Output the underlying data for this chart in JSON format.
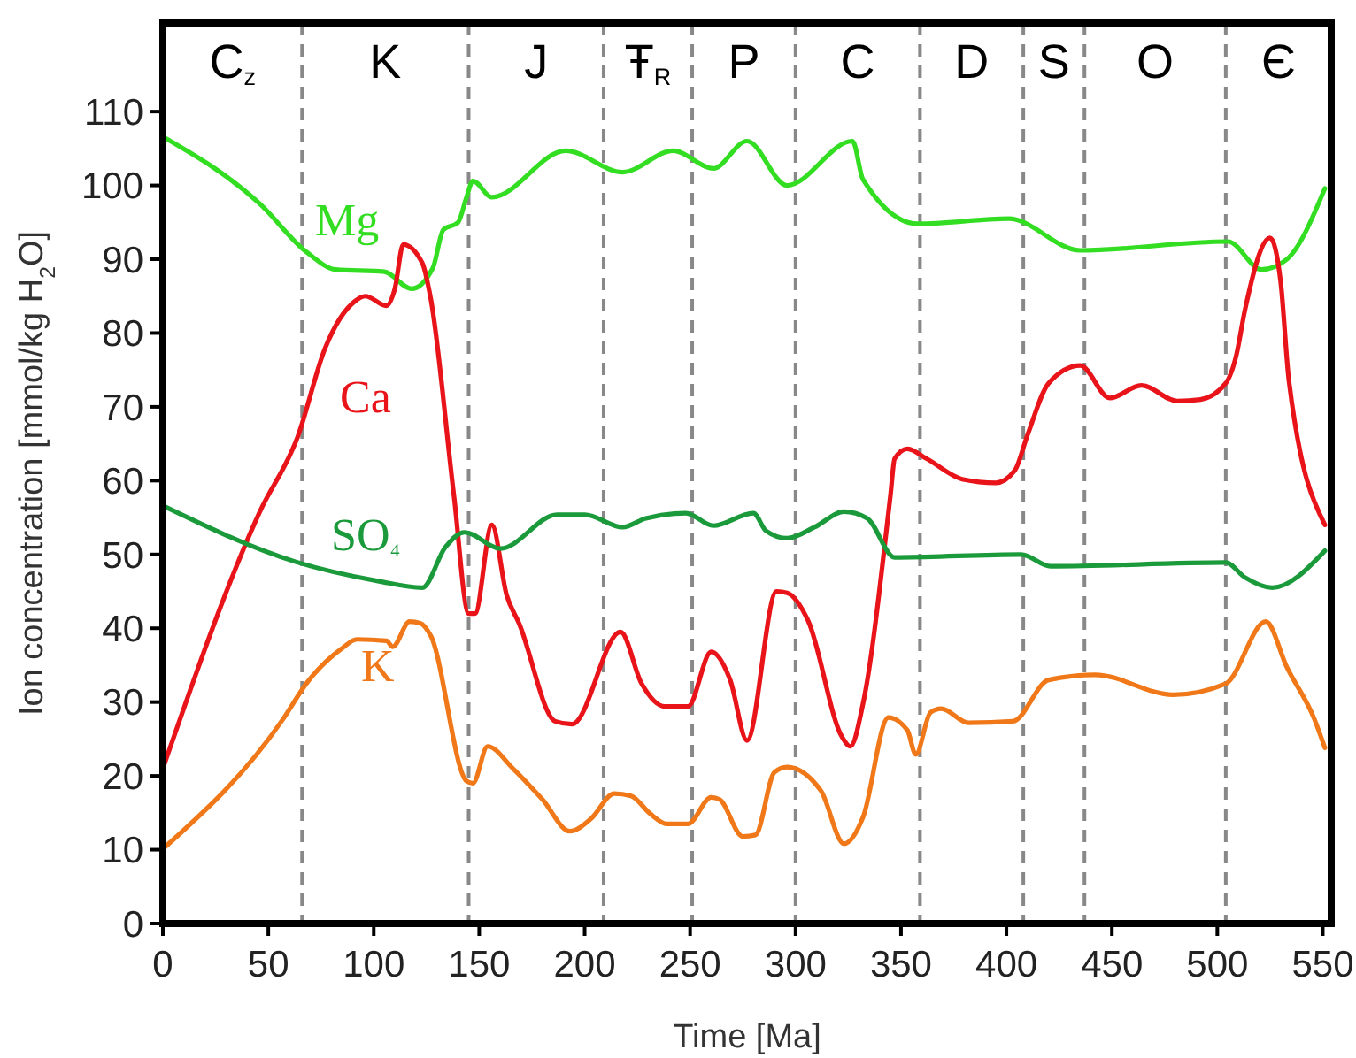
{
  "chart_data": {
    "type": "line",
    "xlabel": "Time [Ma]",
    "ylabel": "Ion concentration [mmol/kg H$_{2}$O]",
    "xlim": [
      0,
      554
    ],
    "xticks": [
      0,
      50,
      100,
      150,
      200,
      250,
      300,
      350,
      400,
      450,
      500,
      550
    ],
    "ylim": [
      0,
      122
    ],
    "yticks": [
      0,
      10,
      20,
      30,
      40,
      50,
      60,
      70,
      80,
      90,
      100,
      110
    ],
    "grid": false,
    "legend": false,
    "marker": "none",
    "line_style": "solid",
    "series": [
      {
        "name": "Mg",
        "color": "#33dd22",
        "x": [
          0,
          46,
          68,
          82,
          105,
          118,
          128,
          133,
          140,
          144,
          147,
          156,
          191,
          218,
          242,
          261,
          277,
          296,
          327,
          332,
          358,
          401,
          435,
          505,
          521,
          533,
          551
        ],
        "values": [
          106.6,
          97.5,
          91,
          88.6,
          88.3,
          86,
          88.8,
          94,
          95,
          98.4,
          100.6,
          98.4,
          104.7,
          101.8,
          104.7,
          102.3,
          106,
          100,
          106,
          100.8,
          94.8,
          95.5,
          91.2,
          92.4,
          88.6,
          90,
          99.6
        ]
      },
      {
        "name": "Ca",
        "color": "#e8141a",
        "x": [
          0,
          46,
          64,
          77,
          91,
          96,
          106,
          110,
          114,
          123,
          127,
          138,
          145,
          148,
          156,
          163,
          169,
          186,
          194,
          217,
          227,
          238,
          249,
          260,
          269,
          277,
          291,
          296,
          306,
          322,
          326,
          332,
          345,
          347,
          353,
          362,
          379,
          395,
          404,
          410,
          420,
          435,
          449,
          464,
          481,
          492,
          504,
          509,
          513,
          525,
          530,
          534,
          551
        ],
        "values": [
          21,
          55.8,
          66,
          78,
          84.3,
          85,
          83.7,
          86,
          92,
          89.5,
          84.7,
          58,
          42,
          42,
          54,
          44.5,
          40.6,
          27.4,
          27,
          39.5,
          32.5,
          29.4,
          29.4,
          36.8,
          33,
          24.8,
          45,
          44.8,
          41,
          25.3,
          24,
          29.8,
          58,
          63,
          64.3,
          63,
          60.2,
          59.7,
          61.4,
          66.2,
          73.2,
          75.6,
          71.2,
          72.9,
          70.8,
          71,
          73.2,
          77,
          83,
          92.9,
          87,
          73.4,
          54
        ]
      },
      {
        "name": "SO₄",
        "color": "#1a9a3a",
        "x": [
          0,
          63,
          102,
          123,
          134,
          143,
          160,
          187,
          200,
          218,
          229,
          248,
          261,
          280,
          286,
          296,
          309,
          323,
          334,
          347,
          407,
          421,
          504,
          513,
          526,
          551
        ],
        "values": [
          56.6,
          49,
          46.4,
          45.5,
          51,
          53,
          50.8,
          55.4,
          55.4,
          53.7,
          54.9,
          55.6,
          53.9,
          55.6,
          53.2,
          52.2,
          53.7,
          55.8,
          54.9,
          49.6,
          50,
          48.4,
          48.9,
          46.9,
          45.5,
          50.5
        ]
      },
      {
        "name": "K",
        "color": "#f07818",
        "x": [
          0,
          57,
          68,
          85,
          92,
          106,
          109,
          117,
          122,
          127,
          144,
          147,
          154,
          166,
          180,
          193,
          203,
          214,
          222,
          231,
          239,
          249,
          260,
          264,
          275,
          281,
          290,
          296,
          312,
          323,
          332,
          344,
          353,
          357,
          364,
          369,
          382,
          403,
          420,
          442,
          479,
          504,
          523,
          533,
          546,
          551
        ],
        "values": [
          10.1,
          27.7,
          32.5,
          37.3,
          38.5,
          38.3,
          37.5,
          40.9,
          40.7,
          39,
          19.3,
          19,
          24,
          21,
          16.8,
          12.5,
          14.2,
          17.6,
          17.3,
          14.9,
          13.5,
          13.5,
          17.1,
          16.8,
          11.8,
          12,
          20.5,
          21.2,
          18,
          10.8,
          14.4,
          27.9,
          26.2,
          22.9,
          28.6,
          29.1,
          27.2,
          27.4,
          33,
          33.7,
          31,
          32.5,
          40.9,
          34.7,
          27.7,
          23.8
        ]
      }
    ],
    "ref_lines": [
      {
        "axis": "x",
        "value": 66,
        "color": "#888888",
        "line_style": "dashed"
      },
      {
        "axis": "x",
        "value": 145,
        "color": "#888888",
        "line_style": "dashed"
      },
      {
        "axis": "x",
        "value": 209,
        "color": "#888888",
        "line_style": "dashed"
      },
      {
        "axis": "x",
        "value": 251,
        "color": "#888888",
        "line_style": "dashed"
      },
      {
        "axis": "x",
        "value": 300,
        "color": "#888888",
        "line_style": "dashed"
      },
      {
        "axis": "x",
        "value": 359,
        "color": "#888888",
        "line_style": "dashed"
      },
      {
        "axis": "x",
        "value": 408,
        "color": "#888888",
        "line_style": "dashed"
      },
      {
        "axis": "x",
        "value": 437,
        "color": "#888888",
        "line_style": "dashed"
      },
      {
        "axis": "x",
        "value": 504,
        "color": "#888888",
        "line_style": "dashed"
      }
    ],
    "annotations": [
      "C$_{z}$",
      "K",
      "J",
      "Ŧ$_{R}$",
      "P",
      "C",
      "D",
      "S",
      "O",
      "Є"
    ]
  }
}
